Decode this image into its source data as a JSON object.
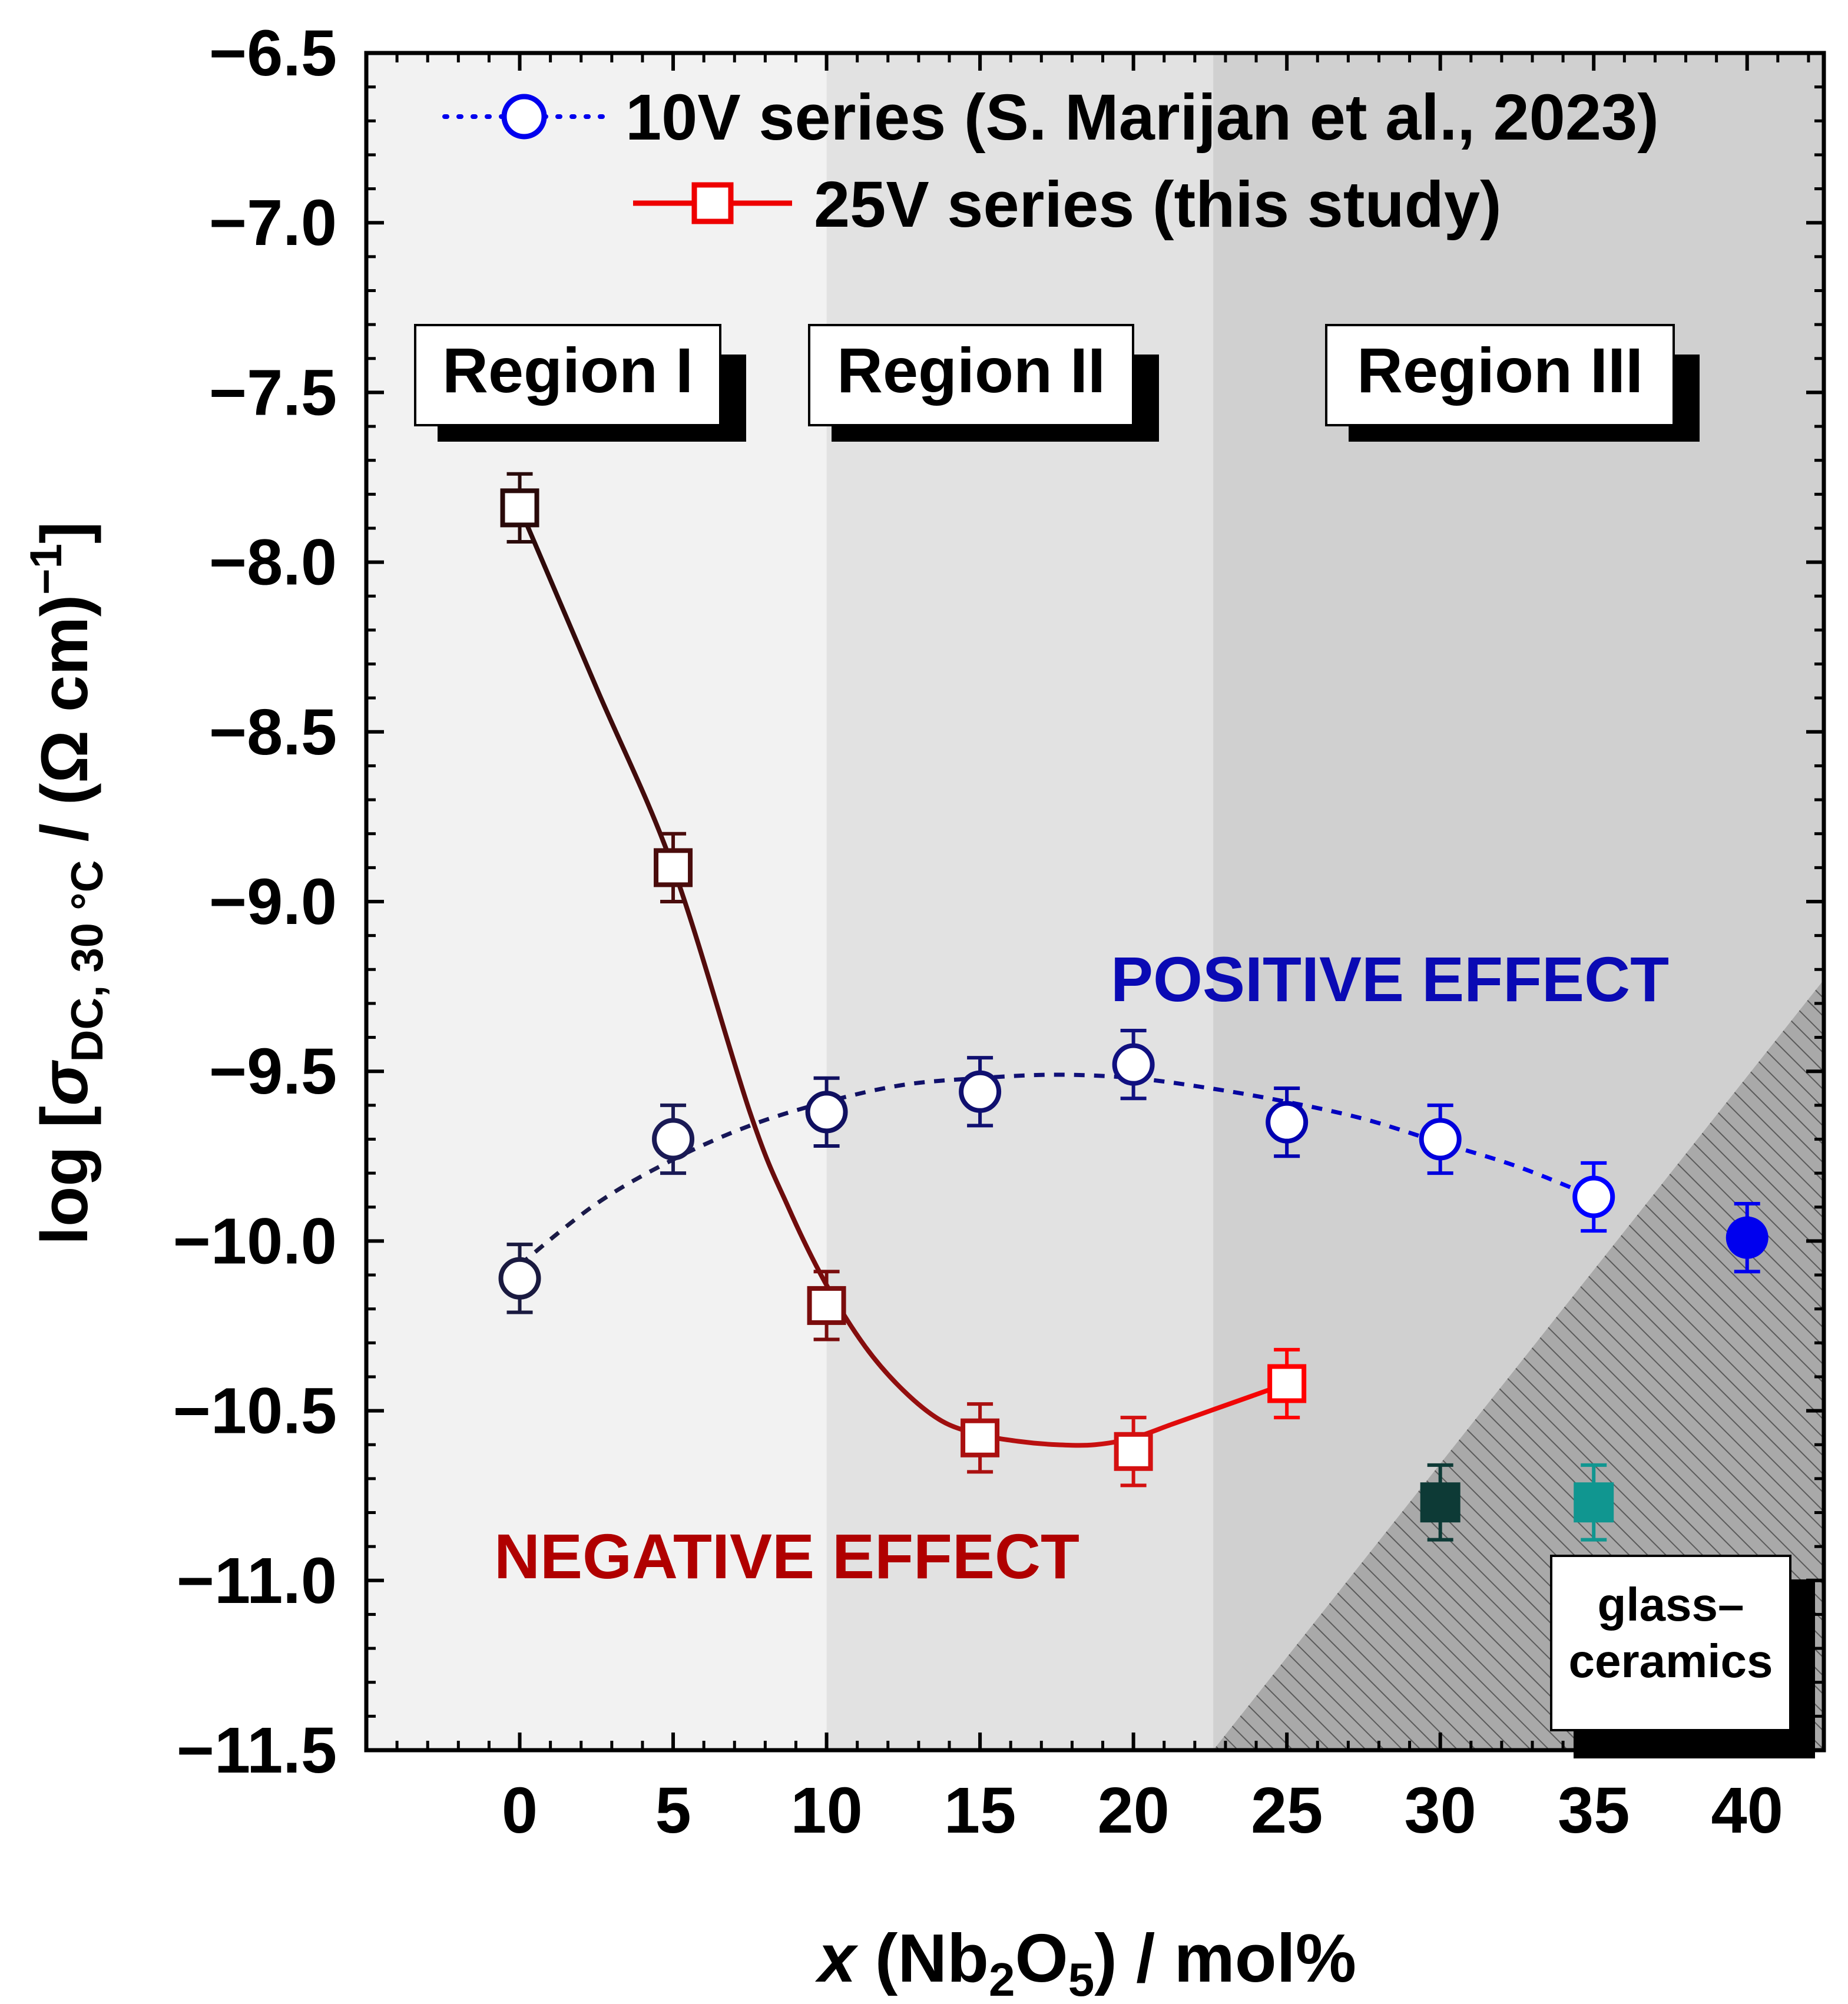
{
  "chart_data": {
    "type": "scatter",
    "title": "",
    "xlabel": {
      "italic": "x",
      "prefix": " (Nb",
      "sub1": "2",
      "mid": "O",
      "sub2": "5",
      "suffix": ") / mol%"
    },
    "ylabel": {
      "prefix": "log [",
      "sigma": "σ",
      "sub": "DC, 30 °C",
      "suffix": " / (Ω cm)",
      "sup": "−1",
      "close": "]"
    },
    "xlim": [
      -5,
      42.5
    ],
    "ylim": [
      -11.5,
      -6.5
    ],
    "x_ticks": [
      0,
      5,
      10,
      15,
      20,
      25,
      30,
      35,
      40
    ],
    "x_tick_labels": [
      "0",
      "5",
      "10",
      "15",
      "20",
      "25",
      "30",
      "35",
      "40"
    ],
    "y_ticks": [
      -11.5,
      -11.0,
      -10.5,
      -10.0,
      -9.5,
      -9.0,
      -8.5,
      -8.0,
      -7.5,
      -7.0,
      -6.5
    ],
    "y_tick_labels": [
      "−11.5",
      "−11.0",
      "−10.5",
      "−10.0",
      "−9.5",
      "−9.0",
      "−8.5",
      "−8.0",
      "−7.5",
      "−7.0",
      "−6.5"
    ],
    "regions": [
      {
        "label": "Region I",
        "x_range": [
          -5,
          10
        ],
        "color": "#f2f2f2"
      },
      {
        "label": "Region II",
        "x_range": [
          10,
          22.6
        ],
        "color": "#e2e2e2"
      },
      {
        "label": "Region III",
        "x_range": [
          22.6,
          42.5
        ],
        "color": "#d0d0d0"
      }
    ],
    "hatch_region": {
      "label_line1": "glass–",
      "label_line2": "ceramics",
      "from": [
        22.6,
        -11.5
      ],
      "to": [
        42.5,
        -9.23
      ]
    },
    "series": [
      {
        "name": "10V series (S. Marijan et al., 2023)",
        "marker": "circle-open",
        "line": "dotted",
        "legend_color": "#0000ee",
        "x": [
          0,
          5,
          10,
          15,
          20,
          25,
          30,
          35
        ],
        "y": [
          -10.11,
          -9.7,
          -9.62,
          -9.56,
          -9.48,
          -9.65,
          -9.7,
          -9.87
        ],
        "yerr": 0.1,
        "colors": [
          "#1a1a40",
          "#1a1a55",
          "#101060",
          "#101070",
          "#101080",
          "#0000b0",
          "#0000dd",
          "#0000ff"
        ],
        "fit_x": [
          0,
          2.5,
          5,
          7.5,
          10,
          12.5,
          15,
          17.5,
          20,
          22.5,
          25,
          27.5,
          30,
          32.5,
          35
        ],
        "fit_y": [
          -10.07,
          -9.89,
          -9.76,
          -9.66,
          -9.59,
          -9.54,
          -9.52,
          -9.51,
          -9.52,
          -9.55,
          -9.59,
          -9.64,
          -9.71,
          -9.78,
          -9.87
        ]
      },
      {
        "name": "25V series (this study)",
        "marker": "square-open",
        "line": "solid",
        "legend_color": "#ee0000",
        "x": [
          0,
          5,
          10,
          15,
          20,
          25
        ],
        "y": [
          -7.84,
          -8.9,
          -10.19,
          -10.58,
          -10.62,
          -10.42
        ],
        "yerr": 0.1,
        "colors": [
          "#2a0a0a",
          "#4a0c0c",
          "#7a0c0c",
          "#aa1010",
          "#d41010",
          "#ff0000"
        ],
        "fit_x": [
          0,
          2.5,
          5,
          7.5,
          8.75,
          10,
          11.25,
          12.5,
          13.75,
          15,
          16.25,
          17.5,
          18.75,
          20,
          21.25,
          22.5,
          23.75,
          25
        ],
        "fit_y": [
          -7.84,
          -8.37,
          -8.9,
          -9.62,
          -9.9,
          -10.13,
          -10.31,
          -10.44,
          -10.53,
          -10.57,
          -10.59,
          -10.6,
          -10.6,
          -10.58,
          -10.54,
          -10.5,
          -10.46,
          -10.42
        ]
      },
      {
        "name": "glass-ceramics",
        "marker": "filled",
        "points": [
          {
            "x": 30,
            "y": -10.77,
            "yerr": 0.11,
            "shape": "square",
            "color": "#0d3a36"
          },
          {
            "x": 35,
            "y": -10.77,
            "yerr": 0.11,
            "shape": "square",
            "color": "#109690"
          },
          {
            "x": 40,
            "y": -9.99,
            "yerr": 0.1,
            "shape": "circle",
            "color": "#0000ee"
          }
        ]
      }
    ],
    "annotations": [
      {
        "text": "POSITIVE EFFECT",
        "x": 26,
        "y": -9.13,
        "color": "#0a0ab4"
      },
      {
        "text": "NEGATIVE EFFECT",
        "x": 10.5,
        "y": -11.07,
        "color": "#b00000"
      }
    ]
  }
}
